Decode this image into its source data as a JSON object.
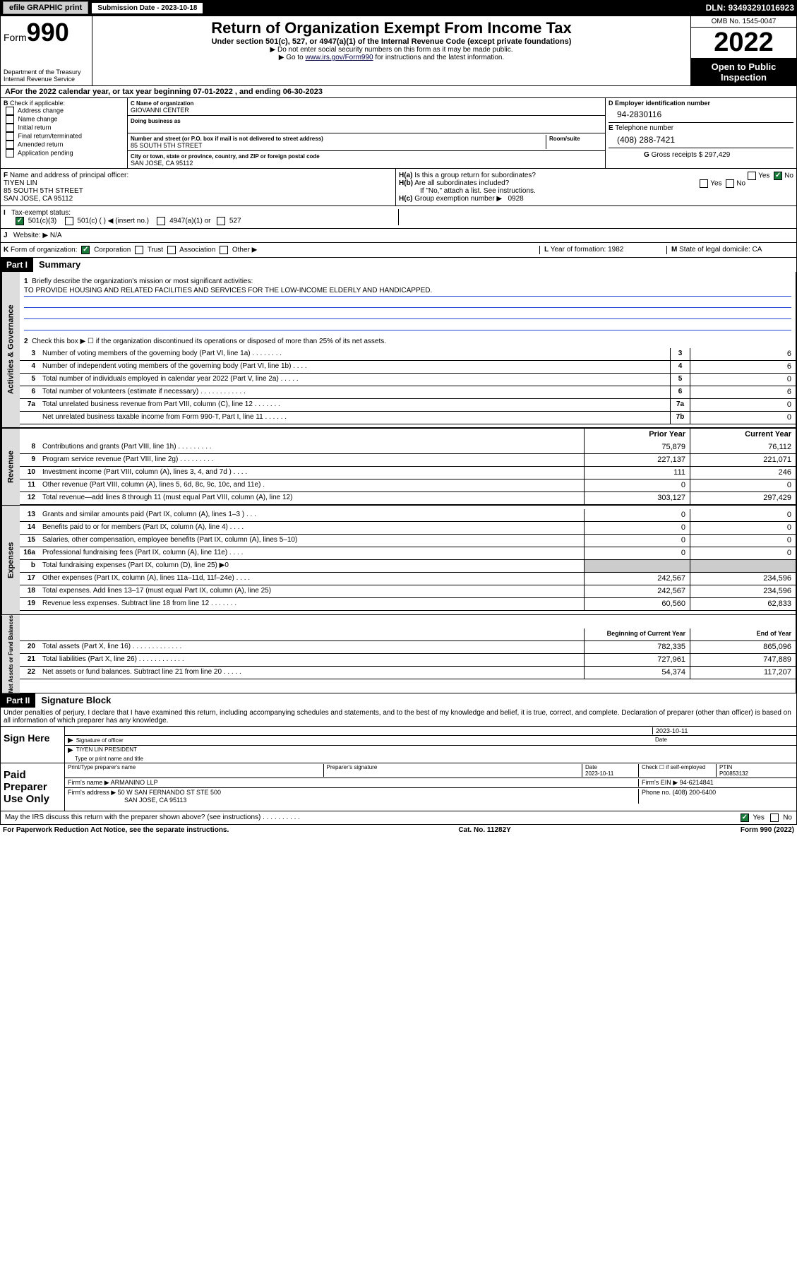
{
  "topbar": {
    "efile": "efile GRAPHIC print",
    "submission_label": "Submission Date - 2023-10-18",
    "dln": "DLN: 93493291016923"
  },
  "header": {
    "form_prefix": "Form",
    "form_number": "990",
    "dept": "Department of the Treasury\nInternal Revenue Service",
    "title": "Return of Organization Exempt From Income Tax",
    "subtitle": "Under section 501(c), 527, or 4947(a)(1) of the Internal Revenue Code (except private foundations)",
    "note1": "▶ Do not enter social security numbers on this form as it may be made public.",
    "note2_pre": "▶ Go to ",
    "note2_link": "www.irs.gov/Form990",
    "note2_post": " for instructions and the latest information.",
    "omb": "OMB No. 1545-0047",
    "year": "2022",
    "open_public": "Open to Public Inspection"
  },
  "A": {
    "text": "For the 2022 calendar year, or tax year beginning 07-01-2022    , and ending 06-30-2023"
  },
  "B": {
    "label": "Check if applicable:",
    "items": [
      "Address change",
      "Name change",
      "Initial return",
      "Final return/terminated",
      "Amended return",
      "Application pending"
    ]
  },
  "C": {
    "name_label": "Name of organization",
    "name": "GIOVANNI CENTER",
    "dba_label": "Doing business as",
    "dba": "",
    "addr_label": "Number and street (or P.O. box if mail is not delivered to street address)",
    "room_label": "Room/suite",
    "addr": "85 SOUTH 5TH STREET",
    "city_label": "City or town, state or province, country, and ZIP or foreign postal code",
    "city": "SAN JOSE, CA  95112"
  },
  "D": {
    "label": "Employer identification number",
    "val": "94-2830116"
  },
  "E": {
    "label": "Telephone number",
    "val": "(408) 288-7421"
  },
  "G": {
    "label": "Gross receipts $",
    "val": "297,429"
  },
  "F": {
    "label": "Name and address of principal officer:",
    "name": "TIYEN LIN",
    "addr1": "85 SOUTH 5TH STREET",
    "addr2": "SAN JOSE, CA  95112"
  },
  "H": {
    "a": "Is this a group return for subordinates?",
    "b": "Are all subordinates included?",
    "note": "If \"No,\" attach a list. See instructions.",
    "c_label": "Group exemption number ▶",
    "c_val": "0928"
  },
  "I": {
    "label": "Tax-exempt status:",
    "opt1": "501(c)(3)",
    "opt2": "501(c) (   ) ◀ (insert no.)",
    "opt3": "4947(a)(1) or",
    "opt4": "527"
  },
  "J": {
    "label": "Website: ▶",
    "val": "N/A"
  },
  "K": {
    "label": "Form of organization:",
    "opts": [
      "Corporation",
      "Trust",
      "Association",
      "Other ▶"
    ]
  },
  "L": {
    "label": "Year of formation:",
    "val": "1982"
  },
  "M": {
    "label": "State of legal domicile:",
    "val": "CA"
  },
  "part1": {
    "header": "Part I",
    "title": "Summary",
    "mission_label": "Briefly describe the organization's mission or most significant activities:",
    "mission": "TO PROVIDE HOUSING AND RELATED FACILITIES AND SERVICES FOR THE LOW-INCOME ELDERLY AND HANDICAPPED.",
    "l2": "Check this box ▶ ☐  if the organization discontinued its operations or disposed of more than 25% of its net assets.",
    "lines_gov": [
      {
        "n": "3",
        "t": "Number of voting members of the governing body (Part VI, line 1a)   .    .    .    .    .    .    .    .",
        "b": "3",
        "v": "6"
      },
      {
        "n": "4",
        "t": "Number of independent voting members of the governing body (Part VI, line 1b)   .    .    .    .",
        "b": "4",
        "v": "6"
      },
      {
        "n": "5",
        "t": "Total number of individuals employed in calendar year 2022 (Part V, line 2a)   .    .    .    .    .",
        "b": "5",
        "v": "0"
      },
      {
        "n": "6",
        "t": "Total number of volunteers (estimate if necessary)   .    .    .    .    .    .    .    .    .    .    .    .",
        "b": "6",
        "v": "6"
      },
      {
        "n": "7a",
        "t": "Total unrelated business revenue from Part VIII, column (C), line 12   .    .    .    .    .    .    .",
        "b": "7a",
        "v": "0"
      },
      {
        "n": "",
        "t": "Net unrelated business taxable income from Form 990-T, Part I, line 11   .    .    .    .    .    .",
        "b": "7b",
        "v": "0"
      }
    ],
    "col_prior": "Prior Year",
    "col_current": "Current Year",
    "lines_rev": [
      {
        "n": "8",
        "t": "Contributions and grants (Part VIII, line 1h)   .    .    .    .    .    .    .    .    .",
        "p": "75,879",
        "c": "76,112"
      },
      {
        "n": "9",
        "t": "Program service revenue (Part VIII, line 2g)   .    .    .    .    .    .    .    .    .",
        "p": "227,137",
        "c": "221,071"
      },
      {
        "n": "10",
        "t": "Investment income (Part VIII, column (A), lines 3, 4, and 7d )   .    .    .    .",
        "p": "111",
        "c": "246"
      },
      {
        "n": "11",
        "t": "Other revenue (Part VIII, column (A), lines 5, 6d, 8c, 9c, 10c, and 11e)   .",
        "p": "0",
        "c": "0"
      },
      {
        "n": "12",
        "t": "Total revenue—add lines 8 through 11 (must equal Part VIII, column (A), line 12)",
        "p": "303,127",
        "c": "297,429"
      }
    ],
    "lines_exp": [
      {
        "n": "13",
        "t": "Grants and similar amounts paid (Part IX, column (A), lines 1–3 )   .    .    .",
        "p": "0",
        "c": "0"
      },
      {
        "n": "14",
        "t": "Benefits paid to or for members (Part IX, column (A), line 4)   .    .    .    .",
        "p": "0",
        "c": "0"
      },
      {
        "n": "15",
        "t": "Salaries, other compensation, employee benefits (Part IX, column (A), lines 5–10)",
        "p": "0",
        "c": "0"
      },
      {
        "n": "16a",
        "t": "Professional fundraising fees (Part IX, column (A), line 11e)   .    .    .    .",
        "p": "0",
        "c": "0"
      },
      {
        "n": "b",
        "t": "Total fundraising expenses (Part IX, column (D), line 25) ▶0",
        "p": "",
        "c": "",
        "gray": true
      },
      {
        "n": "17",
        "t": "Other expenses (Part IX, column (A), lines 11a–11d, 11f–24e)   .    .    .    .",
        "p": "242,567",
        "c": "234,596"
      },
      {
        "n": "18",
        "t": "Total expenses. Add lines 13–17 (must equal Part IX, column (A), line 25)",
        "p": "242,567",
        "c": "234,596"
      },
      {
        "n": "19",
        "t": "Revenue less expenses. Subtract line 18 from line 12   .    .    .    .    .    .    .",
        "p": "60,560",
        "c": "62,833"
      }
    ],
    "col_begin": "Beginning of Current Year",
    "col_end": "End of Year",
    "lines_net": [
      {
        "n": "20",
        "t": "Total assets (Part X, line 16)   .    .    .    .    .    .    .    .    .    .    .    .    .",
        "p": "782,335",
        "c": "865,096"
      },
      {
        "n": "21",
        "t": "Total liabilities (Part X, line 26)   .    .    .    .    .    .    .    .    .    .    .    .",
        "p": "727,961",
        "c": "747,889"
      },
      {
        "n": "22",
        "t": "Net assets or fund balances. Subtract line 21 from line 20   .    .    .    .    .",
        "p": "54,374",
        "c": "117,207"
      }
    ]
  },
  "part2": {
    "header": "Part II",
    "title": "Signature Block",
    "declaration": "Under penalties of perjury, I declare that I have examined this return, including accompanying schedules and statements, and to the best of my knowledge and belief, it is true, correct, and complete. Declaration of preparer (other than officer) is based on all information of which preparer has any knowledge."
  },
  "sign": {
    "here": "Sign Here",
    "sig_label": "Signature of officer",
    "date_label": "Date",
    "date": "2023-10-11",
    "name": "TIYEN LIN  PRESIDENT",
    "name_label": "Type or print name and title"
  },
  "paid": {
    "label": "Paid Preparer Use Only",
    "col1": "Print/Type preparer's name",
    "col2": "Preparer's signature",
    "col3": "Date",
    "date": "2023-10-11",
    "check_label": "Check ☐ if self-employed",
    "ptin_label": "PTIN",
    "ptin": "P00853132",
    "firm_name_label": "Firm's name    ▶",
    "firm_name": "ARMANINO LLP",
    "firm_ein_label": "Firm's EIN ▶",
    "firm_ein": "94-6214841",
    "firm_addr_label": "Firm's address ▶",
    "firm_addr1": "50 W SAN FERNANDO ST STE 500",
    "firm_addr2": "SAN JOSE, CA  95113",
    "phone_label": "Phone no.",
    "phone": "(408) 200-6400"
  },
  "discuss": "May the IRS discuss this return with the preparer shown above? (see instructions)   .    .    .    .    .    .    .    .    .    .",
  "footer": {
    "l": "For Paperwork Reduction Act Notice, see the separate instructions.",
    "m": "Cat. No. 11282Y",
    "r": "Form 990 (2022)"
  },
  "vtabs": {
    "gov": "Activities & Governance",
    "rev": "Revenue",
    "exp": "Expenses",
    "net": "Net Assets or Fund Balances"
  },
  "yes": "Yes",
  "no": "No"
}
